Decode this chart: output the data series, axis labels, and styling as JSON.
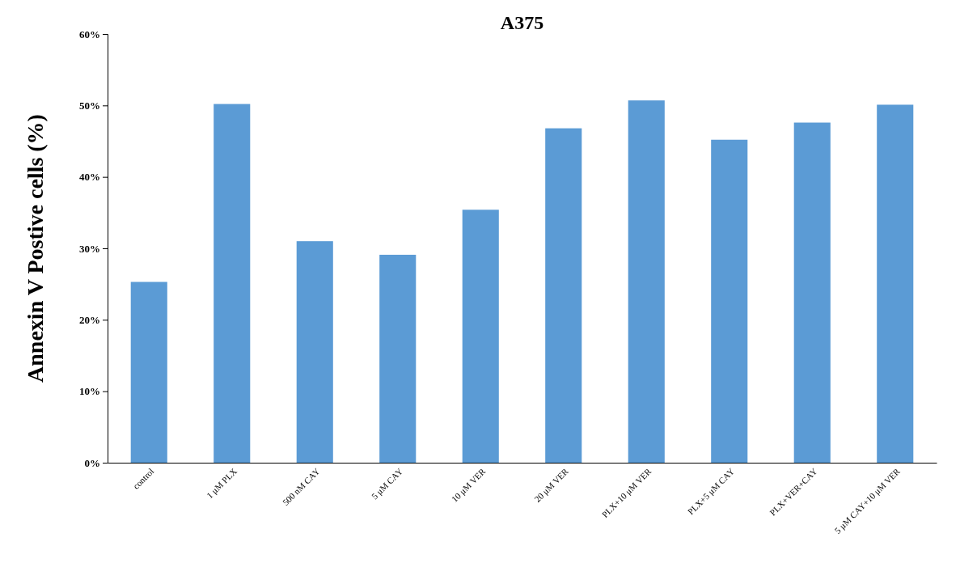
{
  "chart_data": {
    "type": "bar",
    "title": "A375",
    "ylabel": "Annexin V Postive cells (%)",
    "categories": [
      "control",
      "1 μM PLX",
      "500 nM CAY",
      "5 μM CAY",
      "10 μM VER",
      "20 μM VER",
      "PLX+10 μM VER",
      "PLX+5 μM CAY",
      "PLX+VER+CAY",
      "5 μM CAY+10 μM VER"
    ],
    "values": [
      25.3,
      50.2,
      31.0,
      29.1,
      35.4,
      46.8,
      50.7,
      45.2,
      47.6,
      50.1
    ],
    "color": "#5b9bd5",
    "ylim": [
      0,
      60
    ],
    "yticks": [
      {
        "value": 0,
        "label": "0%"
      },
      {
        "value": 10,
        "label": "10%"
      },
      {
        "value": 20,
        "label": "20%"
      },
      {
        "value": 30,
        "label": "30%"
      },
      {
        "value": 40,
        "label": "40%"
      },
      {
        "value": 50,
        "label": "50%"
      },
      {
        "value": 60,
        "label": "60%"
      }
    ],
    "grid": false
  }
}
